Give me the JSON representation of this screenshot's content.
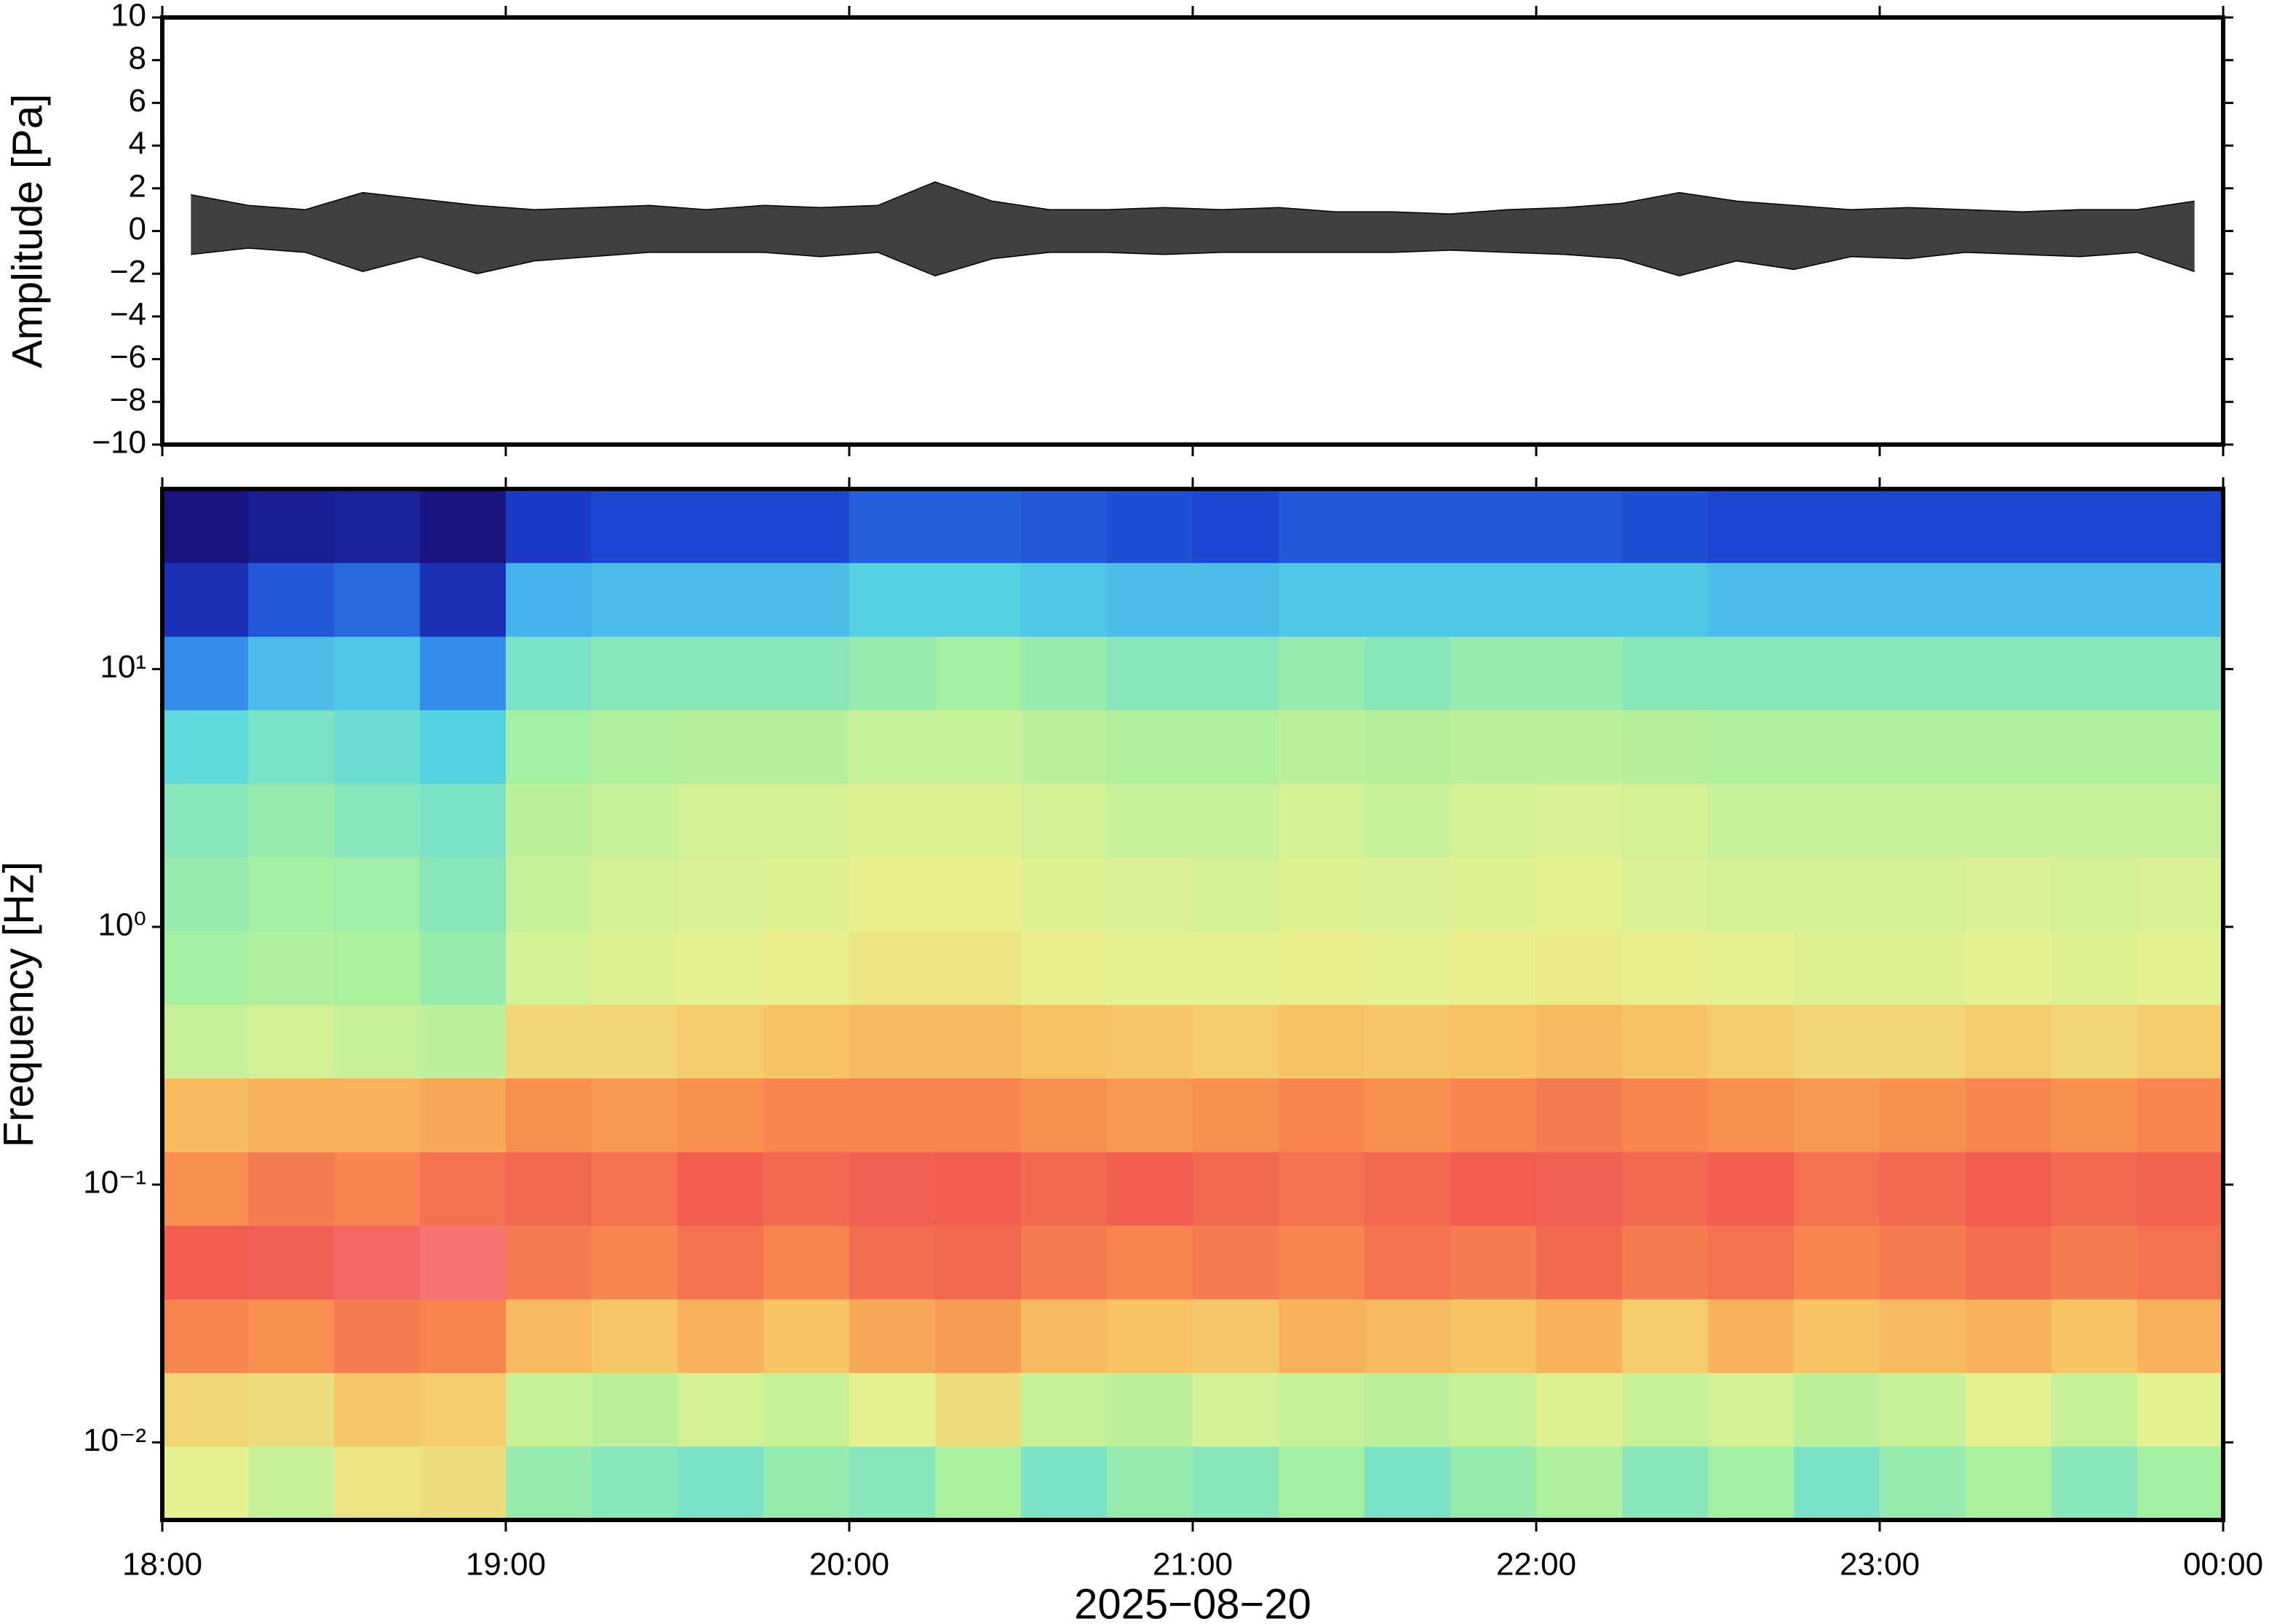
{
  "chart_data": [
    {
      "type": "line",
      "ylabel": "Amplitude [Pa]",
      "xlim": [
        0,
        360
      ],
      "xticks": [
        0,
        60,
        120,
        180,
        240,
        300,
        360
      ],
      "ylim": [
        -10,
        10
      ],
      "yticks": [
        {
          "value": -10,
          "label": "−10"
        },
        {
          "value": -8,
          "label": "−8"
        },
        {
          "value": -6,
          "label": "−6"
        },
        {
          "value": -4,
          "label": "−4"
        },
        {
          "value": -2,
          "label": "−2"
        },
        0,
        2,
        4,
        6,
        8,
        10
      ],
      "color": "#000000",
      "x": [
        5,
        15,
        25,
        35,
        45,
        55,
        65,
        75,
        85,
        95,
        105,
        115,
        125,
        135,
        145,
        155,
        165,
        175,
        185,
        195,
        205,
        215,
        225,
        235,
        245,
        255,
        265,
        275,
        285,
        295,
        305,
        315,
        325,
        335,
        345,
        355
      ],
      "upper": [
        1.7,
        1.2,
        1.0,
        1.8,
        1.5,
        1.2,
        1.0,
        1.1,
        1.2,
        1.0,
        1.2,
        1.1,
        1.2,
        2.3,
        1.4,
        1.0,
        1.0,
        1.1,
        1.0,
        1.1,
        0.9,
        0.9,
        0.8,
        1.0,
        1.1,
        1.3,
        1.8,
        1.4,
        1.2,
        1.0,
        1.1,
        1.0,
        0.9,
        1.0,
        1.0,
        1.4
      ],
      "lower": [
        -1.1,
        -0.8,
        -1.0,
        -1.9,
        -1.2,
        -2.0,
        -1.4,
        -1.2,
        -1.0,
        -1.0,
        -1.0,
        -1.2,
        -1.0,
        -2.1,
        -1.3,
        -1.0,
        -1.0,
        -1.1,
        -1.0,
        -1.0,
        -1.0,
        -1.0,
        -0.9,
        -1.0,
        -1.1,
        -1.3,
        -2.1,
        -1.4,
        -1.8,
        -1.2,
        -1.3,
        -1.0,
        -1.1,
        -1.2,
        -1.0,
        -1.9
      ]
    },
    {
      "type": "spectrogram",
      "ylabel": "Frequency [Hz]",
      "xlabel": "2025−08−20",
      "xlim": [
        0,
        360
      ],
      "xticks": [
        {
          "value": 0,
          "label": "18:00"
        },
        {
          "value": 60,
          "label": "19:00"
        },
        {
          "value": 120,
          "label": "20:00"
        },
        {
          "value": 180,
          "label": "21:00"
        },
        {
          "value": 240,
          "label": "22:00"
        },
        {
          "value": 300,
          "label": "23:00"
        },
        {
          "value": 360,
          "label": "00:00"
        }
      ],
      "ylim": [
        0.005,
        50
      ],
      "log_y": true,
      "yticks": [
        {
          "value": 0.01,
          "label": "10⁻²"
        },
        {
          "value": 0.1,
          "label": "10⁻¹"
        },
        {
          "value": 1,
          "label": "10⁰"
        },
        {
          "value": 10,
          "label": "10¹"
        }
      ],
      "colormap": [
        "#1a0a6e",
        "#1a3fd0",
        "#3aa0f0",
        "#5ad8e0",
        "#a8f0a0",
        "#e8f090",
        "#f8c060",
        "#f89050",
        "#f05a50",
        "#ff8a90"
      ],
      "time_edges": [
        0,
        15,
        30,
        45,
        60,
        75,
        90,
        105,
        120,
        135,
        150,
        165,
        180,
        195,
        210,
        225,
        240,
        255,
        270,
        285,
        300,
        315,
        330,
        345,
        360
      ],
      "freq_edges": [
        0.005,
        0.00966,
        0.01866,
        0.036,
        0.0695,
        0.134,
        0.259,
        0.5,
        0.966,
        1.866,
        3.6,
        6.95,
        13.4,
        25.9,
        50
      ],
      "z": [
        [
          0.55,
          0.5,
          0.58,
          0.6,
          0.42,
          0.4,
          0.38,
          0.42,
          0.4,
          0.45,
          0.38,
          0.42,
          0.4,
          0.44,
          0.38,
          0.42,
          0.46,
          0.4,
          0.44,
          0.38,
          0.42,
          0.45,
          0.4,
          0.44
        ],
        [
          0.62,
          0.6,
          0.65,
          0.64,
          0.5,
          0.48,
          0.52,
          0.5,
          0.55,
          0.6,
          0.5,
          0.48,
          0.52,
          0.5,
          0.48,
          0.5,
          0.54,
          0.5,
          0.52,
          0.48,
          0.5,
          0.55,
          0.5,
          0.55
        ],
        [
          0.8,
          0.78,
          0.82,
          0.8,
          0.68,
          0.65,
          0.7,
          0.66,
          0.72,
          0.75,
          0.68,
          0.66,
          0.65,
          0.7,
          0.68,
          0.66,
          0.7,
          0.64,
          0.7,
          0.66,
          0.68,
          0.7,
          0.66,
          0.7
        ],
        [
          0.88,
          0.9,
          0.92,
          0.95,
          0.82,
          0.8,
          0.84,
          0.8,
          0.85,
          0.86,
          0.82,
          0.8,
          0.82,
          0.8,
          0.84,
          0.82,
          0.86,
          0.82,
          0.84,
          0.8,
          0.82,
          0.85,
          0.82,
          0.84
        ],
        [
          0.78,
          0.82,
          0.8,
          0.84,
          0.86,
          0.84,
          0.88,
          0.86,
          0.9,
          0.88,
          0.86,
          0.88,
          0.86,
          0.84,
          0.86,
          0.88,
          0.9,
          0.86,
          0.88,
          0.84,
          0.86,
          0.88,
          0.86,
          0.87
        ],
        [
          0.68,
          0.7,
          0.7,
          0.72,
          0.78,
          0.76,
          0.78,
          0.8,
          0.8,
          0.8,
          0.78,
          0.76,
          0.78,
          0.8,
          0.78,
          0.8,
          0.82,
          0.8,
          0.78,
          0.76,
          0.78,
          0.8,
          0.78,
          0.8
        ],
        [
          0.5,
          0.52,
          0.5,
          0.48,
          0.62,
          0.62,
          0.64,
          0.66,
          0.68,
          0.68,
          0.66,
          0.65,
          0.64,
          0.66,
          0.65,
          0.66,
          0.68,
          0.66,
          0.64,
          0.62,
          0.62,
          0.64,
          0.62,
          0.64
        ],
        [
          0.44,
          0.46,
          0.45,
          0.42,
          0.52,
          0.54,
          0.55,
          0.56,
          0.58,
          0.58,
          0.56,
          0.55,
          0.55,
          0.56,
          0.55,
          0.56,
          0.57,
          0.56,
          0.55,
          0.54,
          0.54,
          0.55,
          0.54,
          0.55
        ],
        [
          0.42,
          0.44,
          0.43,
          0.4,
          0.5,
          0.52,
          0.53,
          0.54,
          0.56,
          0.56,
          0.54,
          0.53,
          0.52,
          0.54,
          0.53,
          0.54,
          0.55,
          0.53,
          0.52,
          0.52,
          0.52,
          0.53,
          0.52,
          0.53
        ],
        [
          0.4,
          0.42,
          0.4,
          0.38,
          0.48,
          0.5,
          0.52,
          0.52,
          0.54,
          0.54,
          0.52,
          0.5,
          0.5,
          0.52,
          0.5,
          0.52,
          0.53,
          0.52,
          0.5,
          0.5,
          0.5,
          0.5,
          0.5,
          0.5
        ],
        [
          0.34,
          0.38,
          0.36,
          0.32,
          0.44,
          0.46,
          0.47,
          0.47,
          0.5,
          0.5,
          0.48,
          0.46,
          0.46,
          0.48,
          0.47,
          0.48,
          0.48,
          0.47,
          0.46,
          0.46,
          0.46,
          0.46,
          0.46,
          0.46
        ],
        [
          0.2,
          0.28,
          0.3,
          0.2,
          0.38,
          0.4,
          0.4,
          0.4,
          0.42,
          0.44,
          0.42,
          0.4,
          0.4,
          0.42,
          0.4,
          0.42,
          0.42,
          0.4,
          0.4,
          0.4,
          0.4,
          0.4,
          0.4,
          0.4
        ],
        [
          0.08,
          0.14,
          0.16,
          0.08,
          0.26,
          0.28,
          0.28,
          0.28,
          0.32,
          0.32,
          0.3,
          0.28,
          0.28,
          0.3,
          0.3,
          0.3,
          0.3,
          0.3,
          0.28,
          0.28,
          0.28,
          0.28,
          0.28,
          0.28
        ],
        [
          0.02,
          0.04,
          0.05,
          0.02,
          0.1,
          0.12,
          0.12,
          0.12,
          0.15,
          0.15,
          0.14,
          0.13,
          0.12,
          0.14,
          0.14,
          0.14,
          0.14,
          0.13,
          0.12,
          0.12,
          0.12,
          0.12,
          0.12,
          0.12
        ]
      ]
    }
  ]
}
